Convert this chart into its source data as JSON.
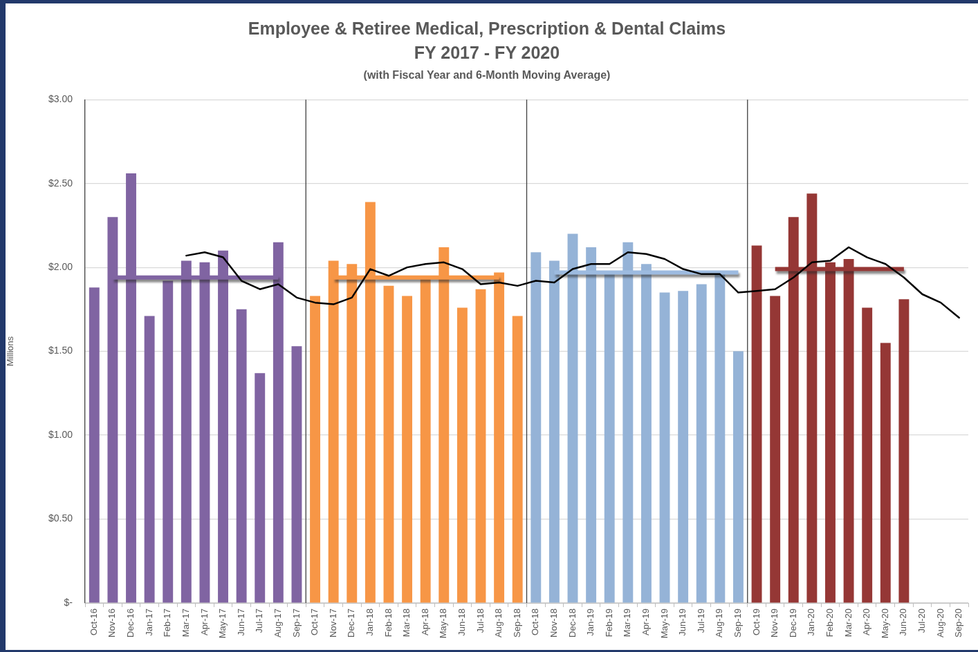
{
  "chart_data": {
    "type": "bar",
    "title": "Employee & Retiree Medical, Prescription & Dental Claims\nFY 2017 - FY 2020",
    "subtitle": "(with Fiscal Year and 6-Month Moving Average)",
    "ylabel": "Millions",
    "categories": [
      "Oct-16",
      "Nov-16",
      "Dec-16",
      "Jan-17",
      "Feb-17",
      "Mar-17",
      "Apr-17",
      "May-17",
      "Jun-17",
      "Jul-17",
      "Aug-17",
      "Sep-17",
      "Oct-17",
      "Nov-17",
      "Dec-17",
      "Jan-18",
      "Feb-18",
      "Mar-18",
      "Apr-18",
      "May-18",
      "Jun-18",
      "Jul-18",
      "Aug-18",
      "Sep-18",
      "Oct-18",
      "Nov-18",
      "Dec-18",
      "Jan-19",
      "Feb-19",
      "Mar-19",
      "Apr-19",
      "May-19",
      "Jun-19",
      "Jul-19",
      "Aug-19",
      "Sep-19",
      "Oct-19",
      "Nov-19",
      "Dec-19",
      "Jan-20",
      "Feb-20",
      "Mar-20",
      "Apr-20",
      "May-20",
      "Jun-20",
      "Jul-20",
      "Aug-20",
      "Sep-20"
    ],
    "series": [
      {
        "values": [
          1.88,
          2.3,
          2.56,
          1.71,
          1.92,
          2.04,
          2.03,
          2.1,
          1.75,
          1.37,
          2.15,
          1.53,
          1.83,
          2.04,
          2.02,
          2.39,
          1.89,
          1.83,
          1.93,
          2.12,
          1.76,
          1.87,
          1.97,
          1.71,
          2.09,
          2.04,
          2.2,
          2.12,
          1.96,
          2.15,
          2.02,
          1.85,
          1.86,
          1.9,
          1.98,
          1.5,
          2.13,
          1.83,
          2.3,
          2.44,
          2.03,
          2.05,
          1.76,
          1.55,
          1.81,
          null,
          null,
          null
        ],
        "colors": [
          "#8064a2",
          "#8064a2",
          "#8064a2",
          "#8064a2",
          "#8064a2",
          "#8064a2",
          "#8064a2",
          "#8064a2",
          "#8064a2",
          "#8064a2",
          "#8064a2",
          "#8064a2",
          "#f79646",
          "#f79646",
          "#f79646",
          "#f79646",
          "#f79646",
          "#f79646",
          "#f79646",
          "#f79646",
          "#f79646",
          "#f79646",
          "#f79646",
          "#f79646",
          "#95b3d7",
          "#95b3d7",
          "#95b3d7",
          "#95b3d7",
          "#95b3d7",
          "#95b3d7",
          "#95b3d7",
          "#95b3d7",
          "#95b3d7",
          "#95b3d7",
          "#95b3d7",
          "#95b3d7",
          "#953735",
          "#953735",
          "#953735",
          "#953735",
          "#953735",
          "#953735",
          "#953735",
          "#953735",
          "#953735",
          "#953735",
          "#953735",
          "#953735"
        ]
      },
      {
        "type": "line",
        "color": "#8064a2",
        "values": [
          null,
          1.94,
          1.94,
          1.94,
          1.94,
          1.94,
          1.94,
          1.94,
          1.94,
          1.94,
          1.94,
          null,
          null,
          null,
          null,
          null,
          null,
          null,
          null,
          null,
          null,
          null,
          null,
          null,
          null,
          null,
          null,
          null,
          null,
          null,
          null,
          null,
          null,
          null,
          null,
          null,
          null,
          null,
          null,
          null,
          null,
          null,
          null,
          null,
          null,
          null,
          null,
          null
        ]
      },
      {
        "type": "line",
        "color": "#f79646",
        "values": [
          null,
          null,
          null,
          null,
          null,
          null,
          null,
          null,
          null,
          null,
          null,
          null,
          null,
          1.94,
          1.94,
          1.94,
          1.94,
          1.94,
          1.94,
          1.94,
          1.94,
          1.94,
          1.94,
          null,
          null,
          null,
          null,
          null,
          null,
          null,
          null,
          null,
          null,
          null,
          null,
          null,
          null,
          null,
          null,
          null,
          null,
          null,
          null,
          null,
          null,
          null,
          null,
          null
        ]
      },
      {
        "type": "line",
        "color": "#9dbbe0",
        "values": [
          null,
          null,
          null,
          null,
          null,
          null,
          null,
          null,
          null,
          null,
          null,
          null,
          null,
          null,
          null,
          null,
          null,
          null,
          null,
          null,
          null,
          null,
          null,
          null,
          null,
          1.97,
          1.97,
          1.97,
          1.97,
          1.97,
          1.97,
          1.97,
          1.97,
          1.97,
          1.97,
          1.97,
          null,
          null,
          null,
          null,
          null,
          null,
          null,
          null,
          null,
          null,
          null,
          null
        ]
      },
      {
        "type": "line",
        "color": "#953735",
        "values": [
          null,
          null,
          null,
          null,
          null,
          null,
          null,
          null,
          null,
          null,
          null,
          null,
          null,
          null,
          null,
          null,
          null,
          null,
          null,
          null,
          null,
          null,
          null,
          null,
          null,
          null,
          null,
          null,
          null,
          null,
          null,
          null,
          null,
          null,
          null,
          null,
          null,
          1.99,
          1.99,
          1.99,
          1.99,
          1.99,
          1.99,
          1.99,
          1.99,
          null,
          null,
          null
        ]
      },
      {
        "type": "line",
        "color": "#000000",
        "values": [
          null,
          null,
          null,
          null,
          null,
          2.07,
          2.09,
          2.06,
          1.92,
          1.87,
          1.9,
          1.82,
          1.79,
          1.78,
          1.82,
          1.99,
          1.95,
          2.0,
          2.02,
          2.03,
          1.99,
          1.9,
          1.91,
          1.89,
          1.92,
          1.91,
          1.99,
          2.02,
          2.02,
          2.09,
          2.08,
          2.05,
          1.99,
          1.96,
          1.96,
          1.85,
          1.86,
          1.87,
          1.94,
          2.03,
          2.04,
          2.12,
          2.06,
          2.02,
          1.94,
          1.84,
          1.79,
          1.7
        ]
      }
    ],
    "ylim": [
      0,
      3
    ],
    "yticks": [
      {
        "value": 0,
        "label": "$-"
      },
      {
        "value": 0.5,
        "label": "$0.50"
      },
      {
        "value": 1,
        "label": "$1.00"
      },
      {
        "value": 1.5,
        "label": "$1.50"
      },
      {
        "value": 2,
        "label": "$2.00"
      },
      {
        "value": 2.5,
        "label": "$2.50"
      },
      {
        "value": 3,
        "label": "$3.00"
      }
    ],
    "grid": "y",
    "marker": "none",
    "line_style": "solid"
  }
}
